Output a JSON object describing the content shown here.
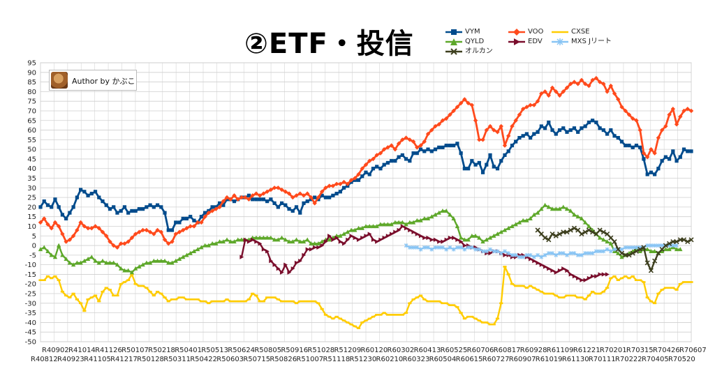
{
  "page": {
    "title": "②ETF・投信",
    "author_label": "Author by かぶこ"
  },
  "legend": [
    {
      "key": "VYM",
      "label": "VYM"
    },
    {
      "key": "VOO",
      "label": "VOO"
    },
    {
      "key": "CXSE",
      "label": "CXSE"
    },
    {
      "key": "QYLD",
      "label": "QYLD"
    },
    {
      "key": "EDV",
      "label": "EDV"
    },
    {
      "key": "MXS",
      "label": "MXS Jリート"
    },
    {
      "key": "ORUKAN",
      "label": "オルカン"
    }
  ],
  "chart_data": {
    "type": "line",
    "title": "②ETF・投信",
    "xlabel": "",
    "ylabel": "",
    "ylim": [
      -50,
      95
    ],
    "ytick_step": 5,
    "grid": true,
    "legend_position": "top-right",
    "x_tick_labels_top": [
      "R40902",
      "R41014",
      "R41126",
      "R50107",
      "R50218",
      "R50401",
      "R50513",
      "R50624",
      "R50805",
      "R50916",
      "R51028",
      "R51209",
      "R60120",
      "R60302",
      "R60413",
      "R60525",
      "R60706",
      "R60817",
      "R60928",
      "R61109",
      "R61221",
      "R70201",
      "R70315",
      "R70426",
      "R70607"
    ],
    "x_tick_labels_bottom": [
      "R40812",
      "R40923",
      "R41105",
      "R41217",
      "R50128",
      "R50311",
      "R50422",
      "R50603",
      "R50715",
      "R50826",
      "R51007",
      "R51118",
      "R51230",
      "R60210",
      "R60323",
      "R60504",
      "R60615",
      "R60727",
      "R60907",
      "R61019",
      "R61130",
      "R70111",
      "R70222",
      "R70405",
      "R70520"
    ],
    "series": [
      {
        "name": "VYM",
        "color": "#004b8c",
        "marker": "square",
        "start": 0,
        "values": [
          20,
          23,
          21,
          20,
          24,
          20,
          16,
          14,
          17,
          20,
          25,
          29,
          28,
          26,
          27,
          28,
          25,
          23,
          21,
          19,
          20,
          17,
          18,
          20,
          17,
          18,
          18,
          19,
          19,
          20,
          21,
          20,
          21,
          20,
          17,
          8,
          8,
          12,
          12,
          14,
          14,
          15,
          13,
          12,
          15,
          17,
          18,
          20,
          20,
          22,
          21,
          24,
          24,
          23,
          24,
          25,
          25,
          26,
          24,
          24,
          24,
          24,
          23,
          24,
          22,
          20,
          22,
          21,
          19,
          18,
          20,
          17,
          22,
          23,
          24,
          25,
          24,
          26,
          25,
          25,
          26,
          27,
          28,
          30,
          31,
          33,
          34,
          34,
          36,
          38,
          37,
          40,
          41,
          40,
          42,
          43,
          44,
          44,
          46,
          47,
          45,
          44,
          48,
          48,
          50,
          49,
          50,
          49,
          50,
          51,
          51,
          52,
          52,
          52,
          53,
          48,
          40,
          40,
          44,
          42,
          43,
          38,
          42,
          47,
          41,
          40,
          44,
          47,
          49,
          52,
          54,
          56,
          57,
          58,
          56,
          58,
          59,
          62,
          61,
          64,
          60,
          58,
          60,
          61,
          59,
          60,
          61,
          59,
          61,
          62,
          64,
          65,
          64,
          61,
          60,
          58,
          60,
          57,
          56,
          54,
          52,
          52,
          51,
          52,
          51,
          45,
          37,
          38,
          37,
          40,
          44,
          46,
          45,
          49,
          44,
          46,
          50,
          49,
          49
        ]
      },
      {
        "name": "VOO",
        "color": "#ff4a1c",
        "marker": "diamond",
        "start": 0,
        "values": [
          12,
          14,
          11,
          9,
          12,
          10,
          6,
          2,
          3,
          5,
          8,
          12,
          10,
          9,
          9,
          10,
          9,
          7,
          5,
          2,
          0,
          -1,
          1,
          1,
          2,
          4,
          6,
          7,
          8,
          8,
          7,
          6,
          8,
          7,
          3,
          1,
          2,
          6,
          7,
          8,
          9,
          10,
          10,
          12,
          12,
          15,
          17,
          18,
          19,
          20,
          23,
          25,
          24,
          26,
          24,
          25,
          25,
          24,
          26,
          27,
          26,
          27,
          28,
          29,
          30,
          30,
          29,
          28,
          27,
          25,
          26,
          27,
          26,
          27,
          25,
          22,
          25,
          28,
          30,
          31,
          31,
          32,
          32,
          33,
          32,
          34,
          35,
          37,
          40,
          42,
          44,
          45,
          47,
          48,
          50,
          51,
          52,
          50,
          53,
          55,
          56,
          55,
          54,
          51,
          52,
          54,
          58,
          60,
          62,
          63,
          65,
          66,
          68,
          70,
          72,
          74,
          76,
          74,
          73,
          65,
          55,
          55,
          60,
          62,
          60,
          59,
          62,
          52,
          57,
          62,
          65,
          68,
          71,
          72,
          73,
          73,
          75,
          79,
          80,
          78,
          82,
          80,
          78,
          80,
          82,
          84,
          85,
          84,
          86,
          84,
          83,
          86,
          87,
          85,
          84,
          80,
          83,
          79,
          76,
          72,
          70,
          68,
          66,
          65,
          60,
          48,
          46,
          50,
          48,
          56,
          60,
          62,
          68,
          71,
          63,
          67,
          70,
          71,
          70
        ]
      },
      {
        "name": "CXSE",
        "color": "#ffcc00",
        "marker": "dash",
        "start": 0,
        "values": [
          -18,
          -18,
          -16,
          -17,
          -16,
          -18,
          -24,
          -26,
          -27,
          -25,
          -28,
          -30,
          -34,
          -28,
          -27,
          -26,
          -29,
          -24,
          -22,
          -23,
          -26,
          -26,
          -20,
          -19,
          -18,
          -15,
          -20,
          -21,
          -21,
          -22,
          -24,
          -26,
          -24,
          -25,
          -27,
          -29,
          -28,
          -28,
          -27,
          -27,
          -28,
          -28,
          -28,
          -28,
          -29,
          -29,
          -30,
          -29,
          -29,
          -29,
          -29,
          -28,
          -29,
          -29,
          -29,
          -29,
          -29,
          -28,
          -25,
          -26,
          -29,
          -29,
          -27,
          -27,
          -27,
          -28,
          -29,
          -29,
          -29,
          -29,
          -30,
          -29,
          -29,
          -29,
          -29,
          -29,
          -30,
          -33,
          -36,
          -37,
          -38,
          -37,
          -38,
          -39,
          -40,
          -41,
          -42,
          -43,
          -40,
          -39,
          -38,
          -37,
          -36,
          -36,
          -35,
          -36,
          -36,
          -36,
          -36,
          -36,
          -35,
          -30,
          -28,
          -27,
          -26,
          -28,
          -29,
          -29,
          -29,
          -29,
          -30,
          -30,
          -31,
          -31,
          -32,
          -35,
          -38,
          -37,
          -37,
          -38,
          -39,
          -40,
          -40,
          -41,
          -41,
          -38,
          -30,
          -11,
          -15,
          -20,
          -21,
          -21,
          -21,
          -22,
          -21,
          -22,
          -23,
          -24,
          -25,
          -25,
          -25,
          -26,
          -27,
          -27,
          -26,
          -26,
          -26,
          -27,
          -27,
          -28,
          -26,
          -24,
          -25,
          -25,
          -24,
          -22,
          -17,
          -16,
          -18,
          -17,
          -16,
          -17,
          -16,
          -18,
          -18,
          -19,
          -27,
          -29,
          -30,
          -25,
          -23,
          -22,
          -22,
          -22,
          -23,
          -20,
          -19,
          -19,
          -19
        ]
      },
      {
        "name": "QYLD",
        "color": "#5ea82a",
        "marker": "triangle",
        "start": 0,
        "values": [
          -2,
          -1,
          -3,
          -5,
          -6,
          0,
          -5,
          -7,
          -9,
          -10,
          -9,
          -9,
          -8,
          -7,
          -6,
          -8,
          -9,
          -8,
          -9,
          -9,
          -9,
          -10,
          -12,
          -13,
          -13,
          -14,
          -12,
          -11,
          -10,
          -9,
          -9,
          -8,
          -8,
          -8,
          -8,
          -9,
          -9,
          -8,
          -7,
          -6,
          -5,
          -4,
          -3,
          -2,
          -1,
          0,
          0,
          1,
          1,
          2,
          2,
          3,
          2,
          2,
          3,
          3,
          3,
          3,
          4,
          4,
          4,
          4,
          4,
          4,
          3,
          3,
          4,
          3,
          2,
          2,
          3,
          2,
          2,
          3,
          1,
          1,
          1,
          2,
          3,
          3,
          4,
          5,
          5,
          6,
          7,
          8,
          8,
          9,
          9,
          10,
          10,
          10,
          10,
          11,
          11,
          11,
          11,
          12,
          12,
          12,
          11,
          12,
          12,
          13,
          13,
          14,
          14,
          15,
          16,
          17,
          18,
          18,
          16,
          14,
          10,
          4,
          3,
          3,
          5,
          5,
          4,
          2,
          3,
          4,
          5,
          6,
          7,
          8,
          9,
          10,
          11,
          12,
          13,
          13,
          14,
          16,
          17,
          19,
          21,
          20,
          19,
          19,
          19,
          20,
          19,
          18,
          16,
          15,
          14,
          12,
          10,
          8,
          6,
          4,
          3,
          2,
          1,
          -3,
          -4,
          -6,
          -5,
          -4,
          -3,
          -2,
          -3,
          -2,
          -2,
          -3,
          -3,
          -4,
          -3,
          -2,
          -2,
          -1,
          -2,
          -2
        ]
      },
      {
        "name": "EDV",
        "color": "#7a0e2c",
        "marker": "arrow",
        "start": 55,
        "values": [
          -6,
          3,
          2,
          3,
          2,
          1,
          -2,
          -3,
          -8,
          -10,
          -12,
          -14,
          -10,
          -14,
          -12,
          -9,
          -8,
          -5,
          -2,
          -2,
          -1,
          -1,
          0,
          2,
          5,
          3,
          4,
          2,
          1,
          3,
          5,
          4,
          3,
          4,
          5,
          6,
          3,
          2,
          3,
          4,
          5,
          6,
          7,
          8,
          10,
          9,
          8,
          7,
          6,
          5,
          4,
          4,
          3,
          3,
          2,
          2,
          3,
          4,
          4,
          3,
          2,
          0,
          0,
          -1,
          -1,
          -2,
          -3,
          -4,
          -4,
          -3,
          -3,
          -4,
          -5,
          -5,
          -6,
          -6,
          -5,
          -5,
          -6,
          -7,
          -8,
          -9,
          -10,
          -11,
          -12,
          -13,
          -14,
          -13,
          -12,
          -13,
          -15,
          -16,
          -17,
          -18,
          -18,
          -17,
          -16,
          -16,
          -15,
          -15,
          -15
        ]
      },
      {
        "name": "MXS Jリート",
        "color": "#88c4f4",
        "marker": "star",
        "start": 100,
        "values": [
          0,
          -1,
          -1,
          -1,
          -2,
          -1,
          -1,
          -2,
          -1,
          -1,
          -1,
          -2,
          -1,
          -2,
          -1,
          -1,
          -2,
          -1,
          -1,
          -2,
          -2,
          -3,
          -3,
          -2,
          -3,
          -3,
          -4,
          -3,
          -4,
          -5,
          -5,
          -6,
          -6,
          -5,
          -5,
          -6,
          -5,
          -6,
          -5,
          -4,
          -4,
          -5,
          -4,
          -4,
          -5,
          -4,
          -4,
          -5,
          -5,
          -4,
          -4,
          -4,
          -3,
          -3,
          -3,
          -2,
          -3,
          -2,
          -2,
          -2,
          -1,
          -1,
          -1,
          -1,
          -1,
          -1,
          0,
          0,
          0,
          0,
          0,
          0,
          0,
          0,
          0
        ]
      },
      {
        "name": "オルカン",
        "color": "#3d3f1e",
        "marker": "x",
        "start": 136,
        "values": [
          8,
          6,
          4,
          3,
          6,
          5,
          6,
          7,
          7,
          8,
          9,
          8,
          6,
          7,
          8,
          7,
          6,
          8,
          7,
          6,
          4,
          2,
          -2,
          -4,
          -5,
          -5,
          -4,
          -3,
          -2,
          -1,
          -9,
          -13,
          -8,
          -4,
          -2,
          0,
          1,
          2,
          2,
          3,
          3,
          2,
          3
        ]
      }
    ]
  }
}
